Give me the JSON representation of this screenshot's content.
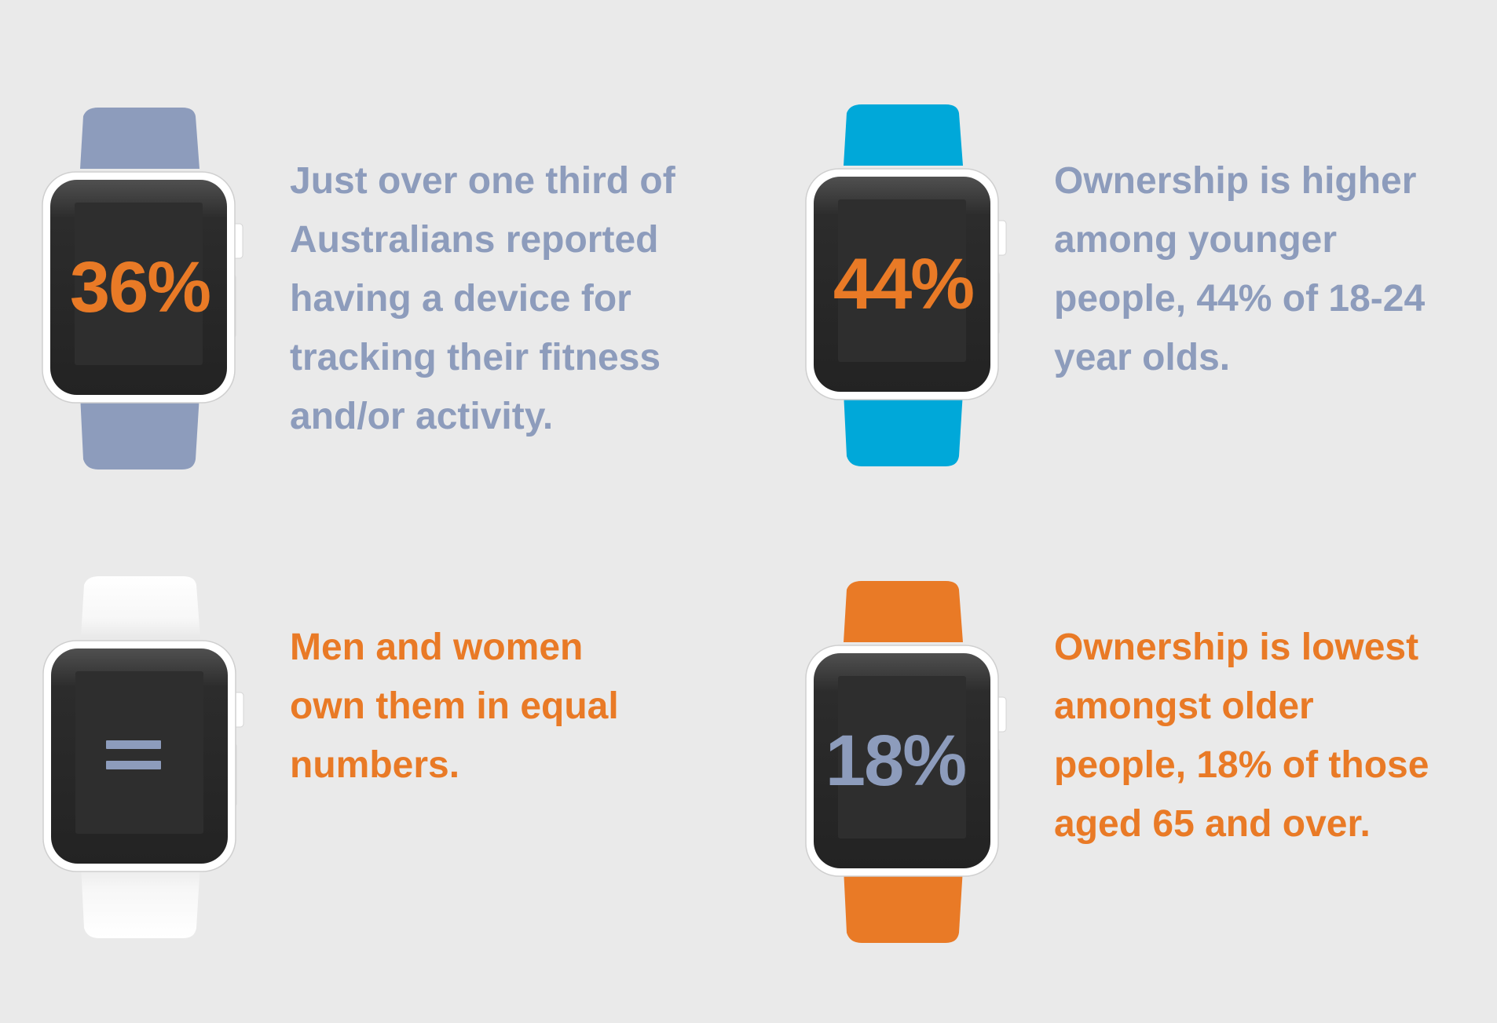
{
  "colors": {
    "background": "#eaeaea",
    "slate_blue": "#8d9cbc",
    "sky_blue": "#00a8d9",
    "white_band": "#ffffff",
    "orange": "#e97a26",
    "watch_screen": "#262626"
  },
  "stats": [
    {
      "screen_value": "36%",
      "band_color": "slate-blue",
      "value_color": "orange",
      "text_color": "slate-blue",
      "text_lines": [
        "Just over one third of",
        "Australians reported",
        "having a device for",
        "tracking their fitness",
        "and/or activity."
      ]
    },
    {
      "screen_value": "44%",
      "band_color": "sky-blue",
      "value_color": "orange",
      "text_color": "slate-blue",
      "text_lines": [
        "Ownership is higher",
        "among younger",
        "people, 44% of 18-24",
        "year olds."
      ]
    },
    {
      "screen_icon": "equals-icon",
      "band_color": "white",
      "text_color": "orange",
      "text_lines": [
        "Men and women",
        "own them in equal",
        "numbers."
      ]
    },
    {
      "screen_value": "18%",
      "band_color": "orange",
      "value_color": "slate-blue",
      "text_color": "orange",
      "text_lines": [
        "Ownership is lowest",
        "amongst older",
        "people, 18% of those",
        "aged 65 and over."
      ]
    }
  ]
}
